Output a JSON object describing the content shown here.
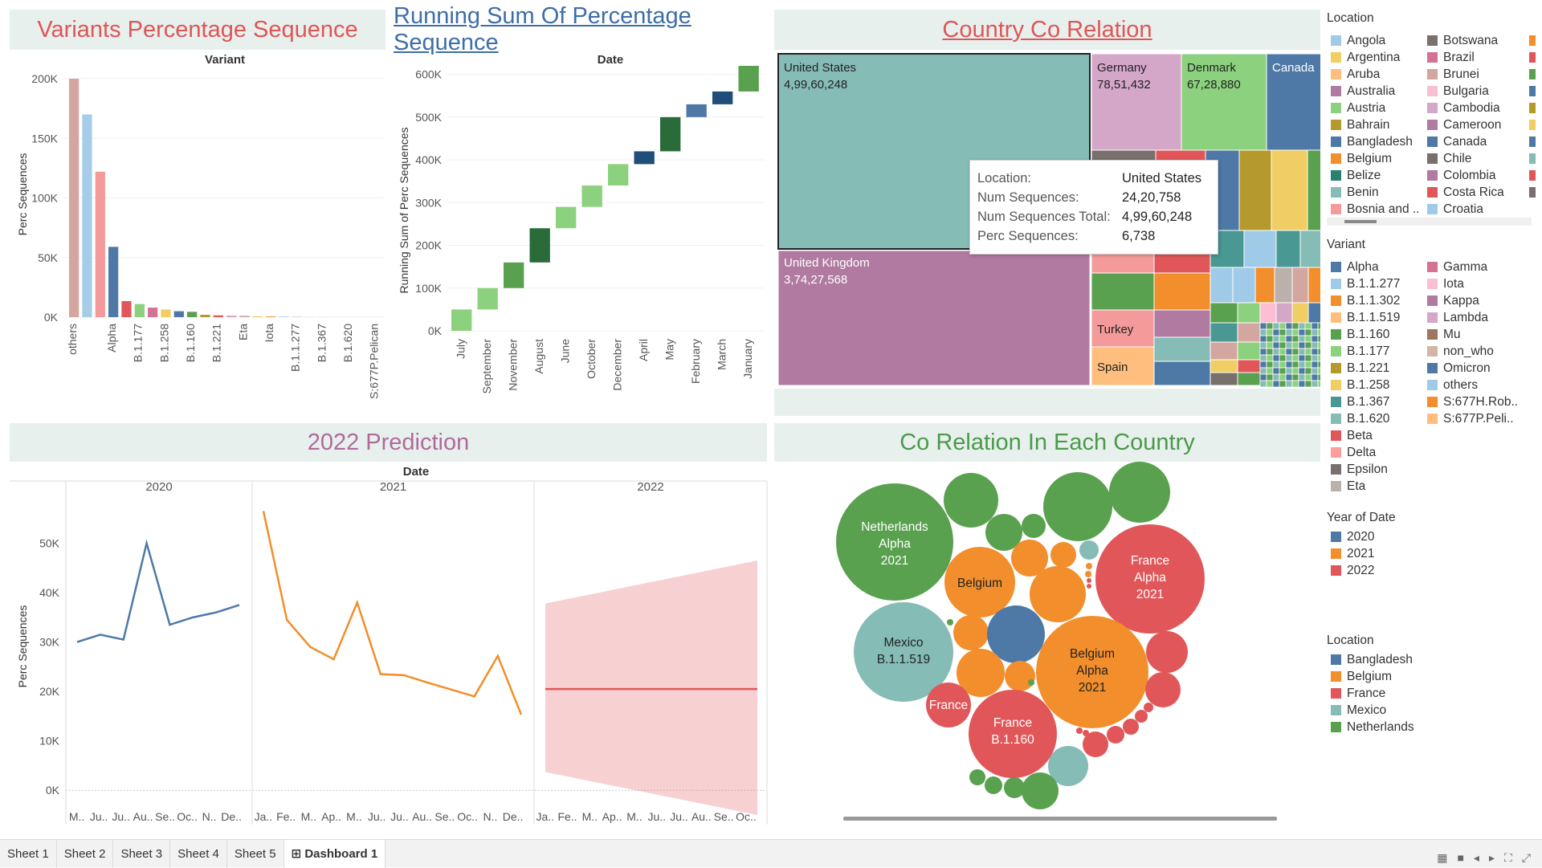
{
  "titles": {
    "variants": "Variants Percentage Sequence",
    "running": "Running Sum Of Percentage Sequence",
    "country": "Country Co Relation",
    "prediction": "2022 Prediction",
    "corelation": "Co Relation In Each Country"
  },
  "colors": {
    "title_red": "#e05555",
    "title_blue": "#3d6ea8",
    "title_purple": "#b06a9a",
    "title_green": "#4a9a4a",
    "title_bg": "#e8f0ee"
  },
  "chart_data": [
    {
      "id": "variants",
      "type": "bar",
      "title": "Variants Percentage Sequence",
      "header": "Variant",
      "ylabel": "Perc Sequences",
      "ylim": [
        0,
        200000
      ],
      "yticks": [
        "0K",
        "50K",
        "100K",
        "150K",
        "200K"
      ],
      "categories": [
        "others",
        "",
        "",
        "Alpha",
        "",
        "B.1.177",
        "",
        "B.1.258",
        "",
        "B.1.160",
        "",
        "B.1.221",
        "",
        "Eta",
        "",
        "Iota",
        "",
        "B.1.1.277",
        "",
        "B.1.367",
        "",
        "B.1.620",
        "",
        "S:677P.Pelican"
      ],
      "values": [
        200000,
        170000,
        122000,
        59000,
        13500,
        11000,
        8000,
        6500,
        5000,
        4500,
        2000,
        1500,
        1300,
        1200,
        800,
        600,
        500,
        300,
        200,
        150,
        100,
        80,
        60,
        40
      ],
      "colors": [
        "#d4a6a0",
        "#a6cde8",
        "#f49a9a",
        "#4e79a7",
        "#e15759",
        "#8cd17d",
        "#d37295",
        "#f1ce63",
        "#4e79a7",
        "#59a14f",
        "#b6992d",
        "#e15759",
        "#d4a6c8",
        "#d4a6a0",
        "#f1ce63",
        "#f28e2b",
        "#a0cbe8",
        "#d4a6c8",
        "#cccccc",
        "#cccccc",
        "#cccccc",
        "#cccccc",
        "#cccccc",
        "#cccccc"
      ]
    },
    {
      "id": "running",
      "type": "waterfall",
      "title": "Running Sum Of Percentage Sequence",
      "header": "Date",
      "ylabel": "Running Sum of Perc Sequences",
      "ylim": [
        0,
        620000
      ],
      "yticks": [
        "0K",
        "100K",
        "200K",
        "300K",
        "400K",
        "500K",
        "600K"
      ],
      "categories": [
        "July",
        "September",
        "November",
        "August",
        "June",
        "October",
        "December",
        "April",
        "May",
        "February",
        "March",
        "January"
      ],
      "starts": [
        0,
        50000,
        100000,
        160000,
        240000,
        290000,
        340000,
        390000,
        420000,
        500000,
        530000,
        560000
      ],
      "ends": [
        50000,
        100000,
        160000,
        240000,
        290000,
        340000,
        390000,
        420000,
        500000,
        530000,
        560000,
        620000
      ],
      "colors": [
        "#8cd17d",
        "#8cd17d",
        "#59a14f",
        "#2a6b3a",
        "#8cd17d",
        "#8cd17d",
        "#8cd17d",
        "#1f4e79",
        "#2a6b3a",
        "#4e79a7",
        "#1f4e79",
        "#59a14f"
      ]
    },
    {
      "id": "prediction",
      "type": "line",
      "title": "2022 Prediction",
      "header": "Date",
      "ylabel": "Perc Sequences",
      "ylim": [
        -5000,
        60000
      ],
      "yticks": [
        "0K",
        "10K",
        "20K",
        "30K",
        "40K",
        "50K"
      ],
      "panels": [
        {
          "year": "2020",
          "months": [
            "M..",
            "Ju..",
            "Ju..",
            "Au..",
            "Se..",
            "Oc..",
            "N..",
            "De.."
          ],
          "values": [
            30000,
            31500,
            30500,
            50000,
            33500,
            35000,
            36000,
            37500
          ],
          "color": "#4e79a7"
        },
        {
          "year": "2021",
          "months": [
            "Ja..",
            "Fe..",
            "M..",
            "Ap..",
            "M..",
            "Ju..",
            "Ju..",
            "Au..",
            "Se..",
            "Oc..",
            "N..",
            "De.."
          ],
          "values": [
            56500,
            34500,
            29000,
            26500,
            38000,
            23500,
            23300,
            21800,
            20400,
            19000,
            27200,
            15300
          ],
          "color": "#f28e2b"
        },
        {
          "year": "2022",
          "months": [
            "Ja..",
            "Fe..",
            "M..",
            "Ap..",
            "M..",
            "Ju..",
            "Ju..",
            "Au..",
            "Se..",
            "Oc.."
          ],
          "forecast": 20500,
          "band_start": [
            3700,
            37800
          ],
          "band_end": [
            -5000,
            46500
          ],
          "color": "#e15759"
        }
      ]
    }
  ],
  "treemap": {
    "cells": [
      {
        "name": "United States",
        "value": "4,99,60,248",
        "color": "#86bcb6"
      },
      {
        "name": "United Kingdom",
        "value": "3,74,27,568",
        "color": "#b07aa1"
      },
      {
        "name": "Germany",
        "value": "78,51,432",
        "color": "#d4a6c8"
      },
      {
        "name": "Denmark",
        "value": "67,28,880",
        "color": "#8cd17d"
      },
      {
        "name": "Canada",
        "value": "",
        "color": "#4e79a7"
      },
      {
        "name": "Turkey",
        "value": "",
        "color": "#f49a9a"
      },
      {
        "name": "Spain",
        "value": "",
        "color": "#ffbe7d"
      }
    ],
    "tooltip": {
      "rows": [
        {
          "k": "Location:",
          "v": "United States"
        },
        {
          "k": "Num Sequences:",
          "v": "24,20,758"
        },
        {
          "k": "Num Sequences Total:",
          "v": "4,99,60,248"
        },
        {
          "k": "Perc Sequences:",
          "v": "6,738"
        }
      ]
    }
  },
  "bubbles": [
    {
      "label": [
        "Netherlands",
        "Alpha",
        "2021"
      ],
      "color": "#59a14f"
    },
    {
      "label": [
        "Belgium"
      ],
      "color": "#f28e2b"
    },
    {
      "label": [
        "France",
        "Alpha",
        "2021"
      ],
      "color": "#e15759"
    },
    {
      "label": [
        "Mexico",
        "B.1.1.519"
      ],
      "color": "#86bcb6"
    },
    {
      "label": [
        "Belgium",
        "Alpha",
        "2021"
      ],
      "color": "#f28e2b"
    },
    {
      "label": [
        "France"
      ],
      "color": "#e15759"
    },
    {
      "label": [
        "France",
        "B.1.160"
      ],
      "color": "#e15759"
    }
  ],
  "legends": {
    "location": {
      "title": "Location",
      "col1": [
        {
          "label": "Angola",
          "color": "#a0cbe8"
        },
        {
          "label": "Argentina",
          "color": "#f1ce63"
        },
        {
          "label": "Aruba",
          "color": "#ffbe7d"
        },
        {
          "label": "Australia",
          "color": "#b07aa1"
        },
        {
          "label": "Austria",
          "color": "#8cd17d"
        },
        {
          "label": "Bahrain",
          "color": "#b6992d"
        },
        {
          "label": "Bangladesh",
          "color": "#4e79a7"
        },
        {
          "label": "Belgium",
          "color": "#f28e2b"
        },
        {
          "label": "Belize",
          "color": "#2a7f6f"
        },
        {
          "label": "Benin",
          "color": "#86bcb6"
        },
        {
          "label": "Bosnia and ..",
          "color": "#f49a9a"
        }
      ],
      "col2": [
        {
          "label": "Botswana",
          "color": "#79706e"
        },
        {
          "label": "Brazil",
          "color": "#d37295"
        },
        {
          "label": "Brunei",
          "color": "#d4a6a0"
        },
        {
          "label": "Bulgaria",
          "color": "#fabfd2"
        },
        {
          "label": "Cambodia",
          "color": "#d4a6c8"
        },
        {
          "label": "Cameroon",
          "color": "#b07aa1"
        },
        {
          "label": "Canada",
          "color": "#4e79a7"
        },
        {
          "label": "Chile",
          "color": "#79706e"
        },
        {
          "label": "Colombia",
          "color": "#b07aa1"
        },
        {
          "label": "Costa Rica",
          "color": "#e15759"
        },
        {
          "label": "Croatia",
          "color": "#a0cbe8"
        }
      ]
    },
    "variant": {
      "title": "Variant",
      "col1": [
        {
          "label": "Alpha",
          "color": "#4e79a7"
        },
        {
          "label": "B.1.1.277",
          "color": "#a0cbe8"
        },
        {
          "label": "B.1.1.302",
          "color": "#f28e2b"
        },
        {
          "label": "B.1.1.519",
          "color": "#ffbe7d"
        },
        {
          "label": "B.1.160",
          "color": "#59a14f"
        },
        {
          "label": "B.1.177",
          "color": "#8cd17d"
        },
        {
          "label": "B.1.221",
          "color": "#b6992d"
        },
        {
          "label": "B.1.258",
          "color": "#f1ce63"
        },
        {
          "label": "B.1.367",
          "color": "#499894"
        },
        {
          "label": "B.1.620",
          "color": "#86bcb6"
        },
        {
          "label": "Beta",
          "color": "#e15759"
        },
        {
          "label": "Delta",
          "color": "#ff9d9a"
        },
        {
          "label": "Epsilon",
          "color": "#79706e"
        },
        {
          "label": "Eta",
          "color": "#bab0ac"
        }
      ],
      "col2": [
        {
          "label": "Gamma",
          "color": "#d37295"
        },
        {
          "label": "Iota",
          "color": "#fabfd2"
        },
        {
          "label": "Kappa",
          "color": "#b07aa1"
        },
        {
          "label": "Lambda",
          "color": "#d4a6c8"
        },
        {
          "label": "Mu",
          "color": "#9d7660"
        },
        {
          "label": "non_who",
          "color": "#d7b5a6"
        },
        {
          "label": "Omicron",
          "color": "#4e79a7"
        },
        {
          "label": "others",
          "color": "#a0cbe8"
        },
        {
          "label": "S:677H.Rob..",
          "color": "#f28e2b"
        },
        {
          "label": "S:677P.Peli..",
          "color": "#ffbe7d"
        }
      ]
    },
    "year": {
      "title": "Year of Date",
      "items": [
        {
          "label": "2020",
          "color": "#4e79a7"
        },
        {
          "label": "2021",
          "color": "#f28e2b"
        },
        {
          "label": "2022",
          "color": "#e15759"
        }
      ]
    },
    "location2": {
      "title": "Location",
      "items": [
        {
          "label": "Bangladesh",
          "color": "#4e79a7"
        },
        {
          "label": "Belgium",
          "color": "#f28e2b"
        },
        {
          "label": "France",
          "color": "#e15759"
        },
        {
          "label": "Mexico",
          "color": "#86bcb6"
        },
        {
          "label": "Netherlands",
          "color": "#59a14f"
        }
      ]
    }
  },
  "tabs": [
    "Sheet 1",
    "Sheet 2",
    "Sheet 3",
    "Sheet 4",
    "Sheet 5",
    "Dashboard 1"
  ],
  "active_tab": "Dashboard 1"
}
